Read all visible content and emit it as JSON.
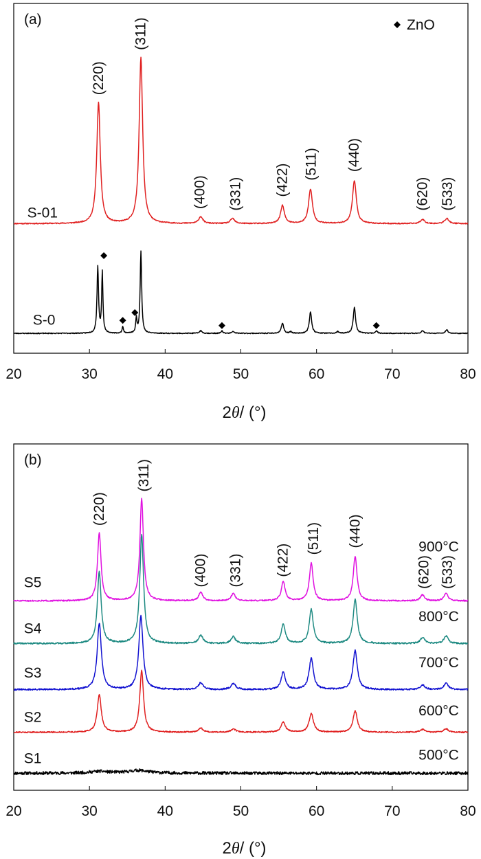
{
  "chart_data": [
    {
      "type": "line",
      "panel_label": "(a)",
      "xlabel_pre": "2",
      "xlabel_theta": "θ",
      "xlabel_post": "/ (°)",
      "xlim": [
        20,
        80
      ],
      "xticks": [
        "20",
        "30",
        "40",
        "50",
        "60",
        "70",
        "80"
      ],
      "legend": {
        "marker": "◆",
        "label": "ZnO",
        "position": "top-right"
      },
      "series": [
        {
          "name": "S-01",
          "color": "#e02020",
          "baseline": 0.05,
          "noise": 0.006,
          "seed": 11,
          "peaks": [
            [
              31.2,
              1.4,
              0.28
            ],
            [
              36.8,
              1.92,
              0.28
            ],
            [
              44.7,
              0.08,
              0.32
            ],
            [
              48.9,
              0.06,
              0.32
            ],
            [
              55.5,
              0.21,
              0.3
            ],
            [
              59.2,
              0.4,
              0.3
            ],
            [
              65.0,
              0.5,
              0.3
            ],
            [
              74.0,
              0.05,
              0.32
            ],
            [
              77.2,
              0.06,
              0.32
            ]
          ]
        },
        {
          "name": "S-0",
          "color": "#000000",
          "baseline": -1.22,
          "noise": 0.005,
          "seed": 23,
          "peaks": [
            [
              31.1,
              0.77,
              0.12
            ],
            [
              31.7,
              0.7,
              0.1
            ],
            [
              34.4,
              0.08,
              0.1
            ],
            [
              36.2,
              0.17,
              0.1
            ],
            [
              36.8,
              0.95,
              0.12
            ],
            [
              44.7,
              0.03,
              0.2
            ],
            [
              47.5,
              0.03,
              0.12
            ],
            [
              49.0,
              0.02,
              0.2
            ],
            [
              55.5,
              0.12,
              0.18
            ],
            [
              56.6,
              0.02,
              0.15
            ],
            [
              59.2,
              0.25,
              0.18
            ],
            [
              62.8,
              0.02,
              0.15
            ],
            [
              65.0,
              0.3,
              0.18
            ],
            [
              67.9,
              0.03,
              0.15
            ],
            [
              74.0,
              0.03,
              0.2
            ],
            [
              77.2,
              0.04,
              0.2
            ]
          ]
        }
      ],
      "curve_labels": [
        {
          "text": "S-01",
          "x": 23.8,
          "y": 0.12
        },
        {
          "text": "S-0",
          "x": 24.0,
          "y": -1.12
        }
      ],
      "hkl_labels": [
        {
          "text": "(220)",
          "x": 31.2,
          "y": 1.54
        },
        {
          "text": "(311)",
          "x": 36.8,
          "y": 2.06
        },
        {
          "text": "(400)",
          "x": 44.6,
          "y": 0.22
        },
        {
          "text": "(331)",
          "x": 49.3,
          "y": 0.2
        },
        {
          "text": "(422)",
          "x": 55.5,
          "y": 0.36
        },
        {
          "text": "(511)",
          "x": 59.3,
          "y": 0.55
        },
        {
          "text": "(440)",
          "x": 65.0,
          "y": 0.65
        },
        {
          "text": "(620)",
          "x": 74.0,
          "y": 0.2
        },
        {
          "text": "(533)",
          "x": 77.3,
          "y": 0.2
        }
      ],
      "markers": [
        {
          "x": 31.9,
          "y": -0.32
        },
        {
          "x": 34.4,
          "y": -1.07
        },
        {
          "x": 36.0,
          "y": -0.98
        },
        {
          "x": 47.5,
          "y": -1.13
        },
        {
          "x": 67.9,
          "y": -1.13
        }
      ]
    },
    {
      "type": "line",
      "panel_label": "(b)",
      "xlabel_pre": "2",
      "xlabel_theta": "θ",
      "xlabel_post": "/ (°)",
      "xlim": [
        20,
        80
      ],
      "xticks": [
        "20",
        "30",
        "40",
        "50",
        "60",
        "70",
        "80"
      ],
      "series": [
        {
          "name": "S5",
          "color": "#e010e0",
          "baseline": 4.0,
          "noise": 0.018,
          "seed": 51,
          "peaks": [
            [
              31.3,
              2.0,
              0.28
            ],
            [
              36.9,
              3.0,
              0.28
            ],
            [
              44.7,
              0.25,
              0.32
            ],
            [
              49.0,
              0.22,
              0.32
            ],
            [
              55.6,
              0.56,
              0.3
            ],
            [
              59.3,
              1.1,
              0.3
            ],
            [
              65.1,
              1.3,
              0.3
            ],
            [
              74.0,
              0.18,
              0.32
            ],
            [
              77.1,
              0.22,
              0.32
            ]
          ]
        },
        {
          "name": "S4",
          "color": "#1e8a82",
          "baseline": 2.75,
          "noise": 0.022,
          "seed": 41,
          "peaks": [
            [
              31.3,
              2.1,
              0.3
            ],
            [
              36.9,
              3.2,
              0.3
            ],
            [
              44.7,
              0.24,
              0.34
            ],
            [
              49.0,
              0.2,
              0.34
            ],
            [
              55.6,
              0.56,
              0.32
            ],
            [
              59.3,
              1.0,
              0.32
            ],
            [
              65.1,
              1.3,
              0.32
            ],
            [
              74.0,
              0.18,
              0.34
            ],
            [
              77.1,
              0.22,
              0.34
            ]
          ]
        },
        {
          "name": "S3",
          "color": "#1010d0",
          "baseline": 1.4,
          "noise": 0.022,
          "seed": 31,
          "peaks": [
            [
              31.3,
              1.95,
              0.33
            ],
            [
              36.8,
              2.15,
              0.33
            ],
            [
              44.7,
              0.2,
              0.36
            ],
            [
              49.0,
              0.18,
              0.36
            ],
            [
              55.6,
              0.5,
              0.34
            ],
            [
              59.3,
              0.92,
              0.34
            ],
            [
              65.1,
              1.15,
              0.34
            ],
            [
              74.0,
              0.14,
              0.36
            ],
            [
              77.1,
              0.18,
              0.36
            ]
          ]
        },
        {
          "name": "S2",
          "color": "#e02020",
          "baseline": 0.15,
          "noise": 0.018,
          "seed": 21,
          "peaks": [
            [
              31.3,
              1.1,
              0.32
            ],
            [
              36.9,
              1.8,
              0.3
            ],
            [
              44.7,
              0.12,
              0.36
            ],
            [
              49.0,
              0.1,
              0.36
            ],
            [
              55.6,
              0.3,
              0.34
            ],
            [
              59.3,
              0.55,
              0.34
            ],
            [
              65.1,
              0.62,
              0.34
            ],
            [
              74.0,
              0.08,
              0.36
            ],
            [
              77.1,
              0.1,
              0.36
            ]
          ]
        },
        {
          "name": "S1",
          "color": "#000000",
          "baseline": -1.05,
          "noise": 0.045,
          "seed": 11,
          "peaks": [
            [
              31.3,
              0.05,
              1.6
            ],
            [
              36.5,
              0.08,
              1.6
            ]
          ]
        }
      ],
      "curve_labels": [
        {
          "text": "S5",
          "x": 22.5,
          "y": 4.4
        },
        {
          "text": "S4",
          "x": 22.5,
          "y": 3.05
        },
        {
          "text": "S3",
          "x": 22.5,
          "y": 1.75
        },
        {
          "text": "S2",
          "x": 22.5,
          "y": 0.45
        },
        {
          "text": "S1",
          "x": 22.5,
          "y": -0.75
        }
      ],
      "temp_labels": [
        {
          "text": "900°C",
          "x": 78.8,
          "y": 5.45
        },
        {
          "text": "800°C",
          "x": 78.8,
          "y": 3.4
        },
        {
          "text": "700°C",
          "x": 78.8,
          "y": 2.05
        },
        {
          "text": "600°C",
          "x": 78.8,
          "y": 0.65
        },
        {
          "text": "500°C",
          "x": 78.8,
          "y": -0.65
        }
      ],
      "hkl_labels": [
        {
          "text": "(220)",
          "x": 31.3,
          "y": 6.2
        },
        {
          "text": "(311)",
          "x": 37.2,
          "y": 7.2
        },
        {
          "text": "(400)",
          "x": 44.7,
          "y": 4.4
        },
        {
          "text": "(331)",
          "x": 49.3,
          "y": 4.4
        },
        {
          "text": "(422)",
          "x": 55.6,
          "y": 4.7
        },
        {
          "text": "(511)",
          "x": 59.6,
          "y": 5.35
        },
        {
          "text": "(440)",
          "x": 65.1,
          "y": 5.55
        },
        {
          "text": "(620)",
          "x": 74.2,
          "y": 4.35
        },
        {
          "text": "(533)",
          "x": 77.3,
          "y": 4.35
        }
      ]
    }
  ]
}
